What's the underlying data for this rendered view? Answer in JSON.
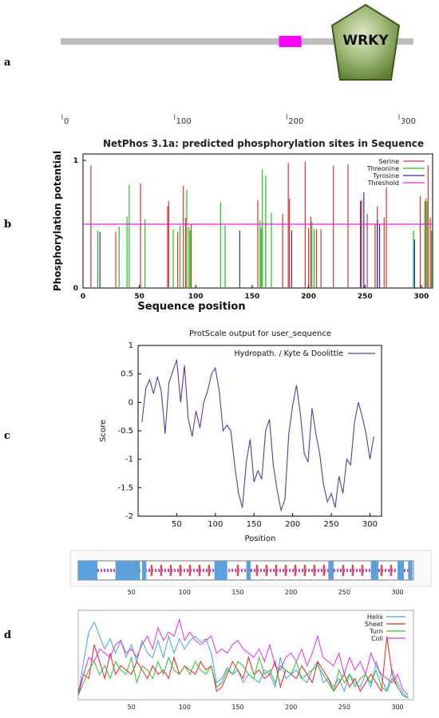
{
  "panels": [
    {
      "letter": "a"
    },
    {
      "letter": "b"
    },
    {
      "letter": "c"
    },
    {
      "letter": "d"
    }
  ],
  "chart_data": [
    {
      "id": "a",
      "type": "protein-domain-map",
      "domain_label": "WRKY",
      "sequence_length": 310,
      "motif_box": {
        "start": 193,
        "end": 213,
        "color": "#ff00ff"
      },
      "domain_region": {
        "center": 280,
        "color": "#6e8f45"
      },
      "ticks": [
        0,
        100,
        200,
        300
      ],
      "xlim": [
        0,
        310
      ]
    },
    {
      "id": "b",
      "type": "bar",
      "title": "NetPhos 3.1a: predicted phosphorylation sites in Sequence",
      "xlabel": "Sequence position",
      "ylabel": "Phosphorylation potential",
      "xlim": [
        0,
        310
      ],
      "ylim": [
        0,
        1.0
      ],
      "xticks": [
        0,
        50,
        100,
        150,
        200,
        250,
        300
      ],
      "yticks": [
        0,
        1
      ],
      "threshold": 0.5,
      "legend_position": "top-right",
      "series": [
        {
          "name": "Serine",
          "color": "#e03030",
          "points": [
            [
              7,
              0.96
            ],
            [
              29,
              0.44
            ],
            [
              51,
              0.82
            ],
            [
              75,
              0.64
            ],
            [
              76,
              0.68
            ],
            [
              84,
              0.44
            ],
            [
              89,
              0.8
            ],
            [
              91,
              0.55
            ],
            [
              96,
              0.5
            ],
            [
              155,
              0.69
            ],
            [
              162,
              0.58
            ],
            [
              177,
              0.58
            ],
            [
              182,
              0.98
            ],
            [
              183,
              0.7
            ],
            [
              197,
              0.99
            ],
            [
              200,
              0.47
            ],
            [
              202,
              0.56
            ],
            [
              207,
              0.46
            ],
            [
              211,
              0.46
            ],
            [
              222,
              0.96
            ],
            [
              235,
              0.97
            ],
            [
              247,
              0.69
            ],
            [
              252,
              0.58
            ],
            [
              259,
              0.5
            ],
            [
              261,
              0.64
            ],
            [
              267,
              0.55
            ],
            [
              269,
              0.79
            ],
            [
              299,
              0.72
            ],
            [
              304,
              0.7
            ],
            [
              306,
              0.96
            ],
            [
              308,
              0.55
            ]
          ]
        },
        {
          "name": "Threonine",
          "color": "#22c022",
          "points": [
            [
              13,
              0.45
            ],
            [
              32,
              0.48
            ],
            [
              39,
              0.56
            ],
            [
              41,
              0.81
            ],
            [
              55,
              0.54
            ],
            [
              80,
              0.46
            ],
            [
              86,
              0.49
            ],
            [
              92,
              0.77
            ],
            [
              94,
              0.48
            ],
            [
              95,
              0.45
            ],
            [
              122,
              0.67
            ],
            [
              126,
              0.49
            ],
            [
              157,
              0.53
            ],
            [
              158,
              0.47
            ],
            [
              159,
              0.93
            ],
            [
              162,
              0.88
            ],
            [
              167,
              0.59
            ],
            [
              203,
              0.52
            ],
            [
              205,
              0.46
            ],
            [
              293,
              0.45
            ],
            [
              303,
              0.68
            ],
            [
              305,
              0.68
            ],
            [
              309,
              0.45
            ]
          ]
        },
        {
          "name": "Tyrosine",
          "color": "#2828c8",
          "points": [
            [
              15,
              0.44
            ],
            [
              139,
              0.45
            ],
            [
              185,
              0.45
            ],
            [
              246,
              0.68
            ],
            [
              249,
              0.75
            ],
            [
              261,
              0.53
            ],
            [
              263,
              0.5
            ],
            [
              294,
              0.38
            ]
          ]
        }
      ]
    },
    {
      "id": "c",
      "type": "line",
      "title": "ProtScale output for user_sequence",
      "xlabel": "Position",
      "ylabel": "Score",
      "xlim": [
        0,
        315
      ],
      "ylim": [
        -2,
        1
      ],
      "xticks": [
        50,
        100,
        150,
        200,
        250,
        300
      ],
      "yticks": [
        1,
        0.5,
        0,
        -0.5,
        -1,
        -1.5,
        -2
      ],
      "legend_position": "top-right",
      "series": [
        {
          "name": "Hydropath. / Kyte & Doolittle",
          "color": "#5b3a9a",
          "x": [
            5,
            10,
            15,
            20,
            25,
            30,
            35,
            40,
            45,
            50,
            55,
            60,
            65,
            70,
            75,
            80,
            85,
            90,
            95,
            100,
            105,
            110,
            115,
            120,
            125,
            130,
            135,
            140,
            145,
            150,
            155,
            160,
            165,
            170,
            175,
            180,
            185,
            190,
            195,
            200,
            205,
            210,
            215,
            220,
            225,
            230,
            235,
            240,
            245,
            250,
            255,
            260,
            265,
            270,
            275,
            280,
            285,
            290,
            295,
            300,
            305
          ],
          "y": [
            -0.35,
            0.25,
            0.4,
            0.15,
            0.45,
            0.2,
            -0.55,
            0.35,
            0.55,
            0.75,
            0.0,
            0.65,
            -0.3,
            -0.6,
            -0.15,
            -0.45,
            0.0,
            0.2,
            0.5,
            0.6,
            0.2,
            -0.5,
            -0.4,
            -0.5,
            -1.1,
            -1.6,
            -1.85,
            -1.05,
            -0.65,
            -1.4,
            -1.2,
            -1.35,
            -0.5,
            -0.3,
            -1.1,
            -1.55,
            -1.9,
            -1.7,
            -0.55,
            -0.05,
            0.3,
            -0.2,
            -0.9,
            -1.05,
            -0.1,
            -0.55,
            -0.9,
            -1.45,
            -1.75,
            -1.6,
            -1.85,
            -1.3,
            -1.6,
            -1.0,
            -1.1,
            -0.35,
            0.0,
            -0.25,
            -0.55,
            -1.0,
            -0.6
          ]
        }
      ]
    },
    {
      "id": "d",
      "type": "line",
      "title": "",
      "xlim": [
        0,
        315
      ],
      "xticks": [
        50,
        100,
        150,
        200,
        250,
        300
      ],
      "legend_position": "top-right",
      "state_legend": [
        "#5aa0dc",
        "#e84848",
        "#cc44cc"
      ],
      "series": [
        {
          "name": "Helix",
          "color": "#3aa6e0",
          "x": [
            0,
            5,
            10,
            15,
            20,
            25,
            30,
            35,
            40,
            45,
            50,
            55,
            60,
            65,
            70,
            75,
            80,
            85,
            90,
            95,
            100,
            105,
            110,
            115,
            120,
            125,
            130,
            135,
            140,
            145,
            150,
            155,
            160,
            165,
            170,
            175,
            180,
            185,
            190,
            195,
            200,
            205,
            210,
            215,
            220,
            225,
            230,
            235,
            240,
            245,
            250,
            255,
            260,
            265,
            270,
            275,
            280,
            285,
            290,
            295,
            300,
            305,
            310
          ],
          "y": [
            0.05,
            0.45,
            0.8,
            0.92,
            0.75,
            0.6,
            0.72,
            0.55,
            0.7,
            0.5,
            0.65,
            0.45,
            0.7,
            0.55,
            0.5,
            0.7,
            0.5,
            0.75,
            0.55,
            0.72,
            0.6,
            0.7,
            0.75,
            0.68,
            0.72,
            0.55,
            0.2,
            0.25,
            0.38,
            0.3,
            0.35,
            0.2,
            0.3,
            0.25,
            0.2,
            0.35,
            0.3,
            0.15,
            0.5,
            0.25,
            0.3,
            0.35,
            0.25,
            0.2,
            0.35,
            0.45,
            0.2,
            0.25,
            0.15,
            0.25,
            0.1,
            0.3,
            0.2,
            0.15,
            0.3,
            0.15,
            0.45,
            0.25,
            0.1,
            0.35,
            0.2,
            0.08,
            0.02
          ]
        },
        {
          "name": "Sheet",
          "color": "#e82020",
          "x": [
            0,
            5,
            10,
            15,
            20,
            25,
            30,
            35,
            40,
            45,
            50,
            55,
            60,
            65,
            70,
            75,
            80,
            85,
            90,
            95,
            100,
            105,
            110,
            115,
            120,
            125,
            130,
            135,
            140,
            145,
            150,
            155,
            160,
            165,
            170,
            175,
            180,
            185,
            190,
            195,
            200,
            205,
            210,
            215,
            220,
            225,
            230,
            235,
            240,
            245,
            250,
            255,
            260,
            265,
            270,
            275,
            280,
            285,
            290,
            295,
            300,
            305,
            310
          ],
          "y": [
            0.05,
            0.3,
            0.25,
            0.65,
            0.45,
            0.25,
            0.55,
            0.3,
            0.4,
            0.35,
            0.3,
            0.45,
            0.35,
            0.25,
            0.4,
            0.3,
            0.35,
            0.25,
            0.5,
            0.3,
            0.4,
            0.35,
            0.3,
            0.45,
            0.35,
            0.4,
            0.1,
            0.15,
            0.3,
            0.45,
            0.35,
            0.25,
            0.5,
            0.3,
            0.35,
            0.25,
            0.3,
            0.45,
            0.15,
            0.35,
            0.3,
            0.25,
            0.4,
            0.3,
            0.2,
            0.45,
            0.35,
            0.25,
            0.1,
            0.2,
            0.3,
            0.15,
            0.25,
            0.1,
            0.2,
            0.3,
            0.2,
            0.1,
            0.75,
            0.3,
            0.15,
            0.05,
            0.02
          ]
        },
        {
          "name": "Turn",
          "color": "#30c030",
          "x": [
            0,
            5,
            10,
            15,
            20,
            25,
            30,
            35,
            40,
            45,
            50,
            55,
            60,
            65,
            70,
            75,
            80,
            85,
            90,
            95,
            100,
            105,
            110,
            115,
            120,
            125,
            130,
            135,
            140,
            145,
            150,
            155,
            160,
            165,
            170,
            175,
            180,
            185,
            190,
            195,
            200,
            205,
            210,
            215,
            220,
            225,
            230,
            235,
            240,
            245,
            250,
            255,
            260,
            265,
            270,
            275,
            280,
            285,
            290,
            295,
            300,
            305,
            310
          ],
          "y": [
            0.05,
            0.2,
            0.35,
            0.45,
            0.3,
            0.4,
            0.25,
            0.45,
            0.35,
            0.3,
            0.5,
            0.2,
            0.4,
            0.35,
            0.25,
            0.45,
            0.3,
            0.5,
            0.35,
            0.3,
            0.4,
            0.3,
            0.45,
            0.35,
            0.3,
            0.4,
            0.15,
            0.2,
            0.35,
            0.3,
            0.45,
            0.4,
            0.3,
            0.25,
            0.5,
            0.3,
            0.35,
            0.2,
            0.4,
            0.35,
            0.3,
            0.45,
            0.25,
            0.3,
            0.35,
            0.4,
            0.3,
            0.2,
            0.1,
            0.35,
            0.2,
            0.3,
            0.15,
            0.25,
            0.3,
            0.2,
            0.35,
            0.15,
            0.1,
            0.25,
            0.15,
            0.05,
            0.02
          ]
        },
        {
          "name": "Coil",
          "color": "#e030e0",
          "x": [
            0,
            5,
            10,
            15,
            20,
            25,
            30,
            35,
            40,
            45,
            50,
            55,
            60,
            65,
            70,
            75,
            80,
            85,
            90,
            95,
            100,
            105,
            110,
            115,
            120,
            125,
            130,
            135,
            140,
            145,
            150,
            155,
            160,
            165,
            170,
            175,
            180,
            185,
            190,
            195,
            200,
            205,
            210,
            215,
            220,
            225,
            230,
            235,
            240,
            245,
            250,
            255,
            260,
            265,
            270,
            275,
            280,
            285,
            290,
            295,
            300,
            305,
            310
          ],
          "y": [
            0.1,
            0.3,
            0.5,
            0.45,
            0.6,
            0.55,
            0.5,
            0.65,
            0.7,
            0.55,
            0.6,
            0.5,
            0.65,
            0.75,
            0.6,
            0.85,
            0.7,
            0.8,
            0.75,
            0.95,
            0.7,
            0.8,
            0.7,
            0.65,
            0.7,
            0.75,
            0.55,
            0.6,
            0.55,
            0.65,
            0.7,
            0.6,
            0.55,
            0.5,
            0.6,
            0.45,
            0.65,
            0.4,
            0.35,
            0.5,
            0.55,
            0.45,
            0.6,
            0.4,
            0.55,
            0.75,
            0.5,
            0.45,
            0.4,
            0.55,
            0.3,
            0.5,
            0.35,
            0.45,
            0.3,
            0.55,
            0.4,
            0.3,
            0.25,
            0.2,
            0.3,
            0.12,
            0.05
          ]
        }
      ]
    }
  ]
}
